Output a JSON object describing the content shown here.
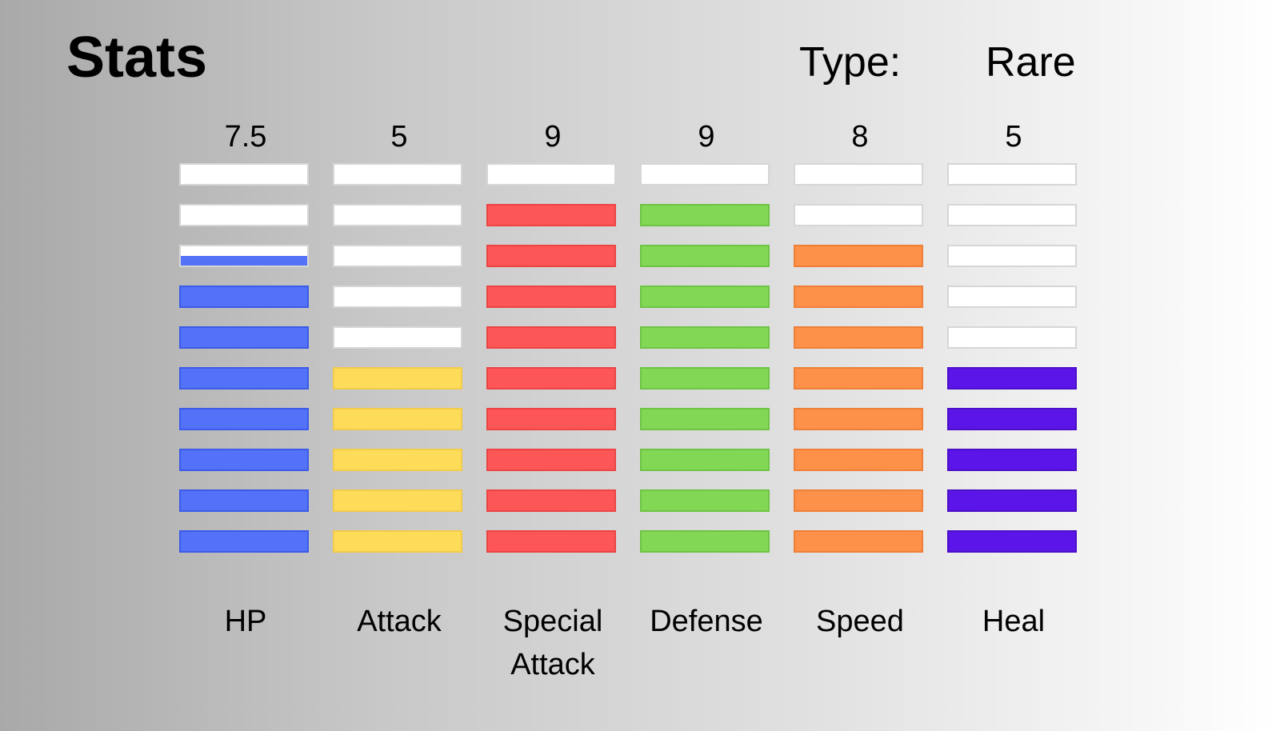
{
  "header": {
    "title": "Stats",
    "type_label": "Type:",
    "type_value": "Rare"
  },
  "stats": [
    {
      "name": "HP",
      "value_label": "7.5",
      "value": 7.5,
      "color": "#5472f7",
      "border": "#3b5be8"
    },
    {
      "name": "Attack",
      "value_label": "5",
      "value": 5,
      "color": "#fddc59",
      "border": "#f2cc4a"
    },
    {
      "name": "Special Attack",
      "value_label": "9",
      "value": 9,
      "color": "#fd5656",
      "border": "#ec4444"
    },
    {
      "name": "Defense",
      "value_label": "9",
      "value": 9,
      "color": "#82d755",
      "border": "#6ec444"
    },
    {
      "name": "Speed",
      "value_label": "8",
      "value": 8,
      "color": "#fd9149",
      "border": "#ef7f38"
    },
    {
      "name": "Heal",
      "value_label": "5",
      "value": 5,
      "color": "#5c15e8",
      "border": "#4a10c8"
    }
  ],
  "max_value": 10
}
